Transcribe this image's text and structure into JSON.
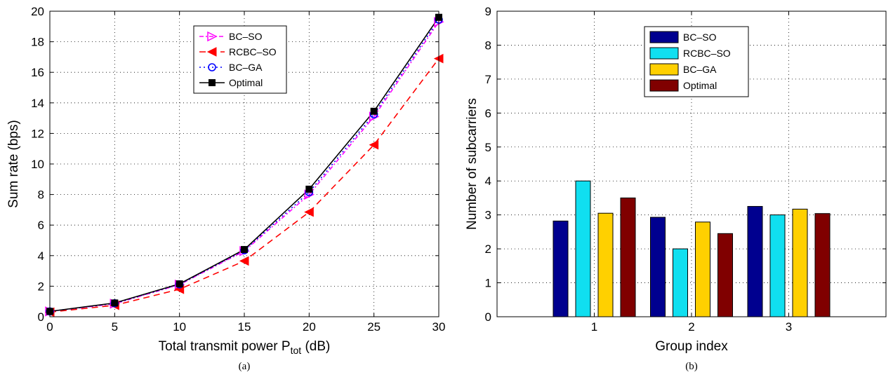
{
  "chart_data": [
    {
      "type": "line",
      "panel_label": "(a)",
      "xlabel_main": "Total transmit power P",
      "xlabel_sub": "tot",
      "xlabel_unit": " (dB)",
      "ylabel": "Sum rate (bps)",
      "xlim": [
        0,
        30
      ],
      "ylim": [
        0,
        20
      ],
      "xticks": [
        "0",
        "5",
        "10",
        "15",
        "20",
        "25",
        "30"
      ],
      "yticks": [
        "0",
        "2",
        "4",
        "6",
        "8",
        "10",
        "12",
        "14",
        "16",
        "18",
        "20"
      ],
      "grid": true,
      "legend_position": "top-center",
      "x": [
        0,
        5,
        10,
        15,
        20,
        25,
        30
      ],
      "series": [
        {
          "name": "BC–SO",
          "values": [
            0.35,
            0.85,
            2.1,
            4.3,
            8.0,
            13.1,
            19.3
          ],
          "color": "#ff00ff",
          "marker": "triangle-right",
          "dash": "6,3,2,3"
        },
        {
          "name": "RCBC–SO",
          "values": [
            0.3,
            0.75,
            1.8,
            3.65,
            6.85,
            11.25,
            16.9
          ],
          "color": "#ff0000",
          "marker": "triangle-left",
          "dash": "9,6"
        },
        {
          "name": "BC–GA",
          "values": [
            0.35,
            0.88,
            2.12,
            4.35,
            8.15,
            13.25,
            19.45
          ],
          "color": "#0000ff",
          "marker": "circle",
          "dash": "2,4"
        },
        {
          "name": "Optimal",
          "values": [
            0.35,
            0.9,
            2.15,
            4.4,
            8.35,
            13.45,
            19.6
          ],
          "color": "#000000",
          "marker": "square",
          "dash": ""
        }
      ]
    },
    {
      "type": "bar",
      "panel_label": "(b)",
      "xlabel": "Group index",
      "ylabel": "Number of subcarriers",
      "categories": [
        "1",
        "2",
        "3"
      ],
      "ylim": [
        0,
        9
      ],
      "yticks": [
        "0",
        "1",
        "2",
        "3",
        "4",
        "5",
        "6",
        "7",
        "8",
        "9"
      ],
      "grid": true,
      "legend_position": "top-center",
      "series": [
        {
          "name": "BC–SO",
          "values": [
            2.82,
            2.93,
            3.25
          ],
          "color": "#00008f"
        },
        {
          "name": "RCBC–SO",
          "values": [
            4.0,
            2.0,
            3.0
          ],
          "color": "#10dff0"
        },
        {
          "name": "BC–GA",
          "values": [
            3.05,
            2.79,
            3.17
          ],
          "color": "#ffd000"
        },
        {
          "name": "Optimal",
          "values": [
            3.5,
            2.45,
            3.04
          ],
          "color": "#800000"
        }
      ]
    }
  ]
}
